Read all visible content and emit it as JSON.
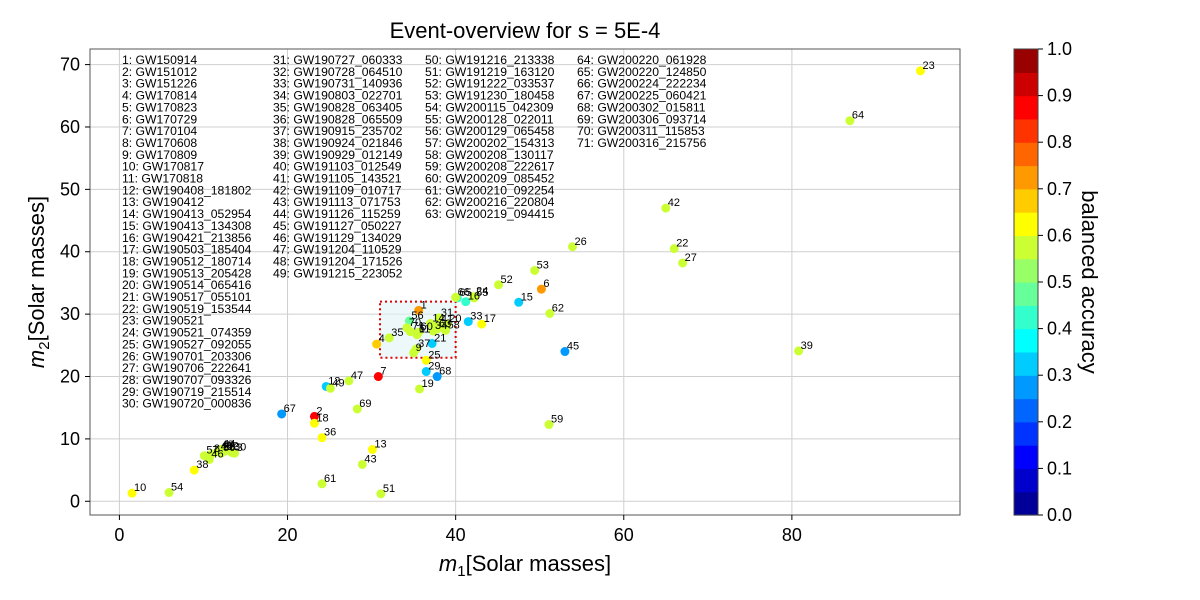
{
  "chart_data": {
    "type": "scatter",
    "title": "Event-overview for s = 5E-4",
    "xlabel_italic": "m",
    "xlabel_sub": "1",
    "xlabel_rest": "[Solar masses]",
    "ylabel_italic": "m",
    "ylabel_sub": "2",
    "ylabel_rest": "[Solar masses]",
    "xlim": [
      -3.5,
      100
    ],
    "ylim": [
      -2.2,
      72.5
    ],
    "xticks": [
      0,
      20,
      40,
      60,
      80
    ],
    "yticks": [
      0,
      10,
      20,
      30,
      40,
      50,
      60,
      70
    ],
    "grid": true,
    "colorbar": {
      "label": "balanced accuracy",
      "range": [
        0,
        1
      ],
      "ticks": [
        "0.0",
        "0.1",
        "0.2",
        "0.3",
        "0.4",
        "0.5",
        "0.6",
        "0.7",
        "0.8",
        "0.9",
        "1.0"
      ],
      "colormap": "jet",
      "levels": 20
    },
    "highlight_box": {
      "x": [
        31,
        40
      ],
      "y": [
        23,
        32
      ],
      "color": "#e00000"
    },
    "legend_columns": [
      [
        "1: GW150914",
        "2: GW151012",
        "3: GW151226",
        "4: GW170814",
        "5: GW170823",
        "6: GW170729",
        "7: GW170104",
        "8: GW170608",
        "9: GW170809",
        "10: GW170817",
        "11: GW170818",
        "12: GW190408_181802",
        "13: GW190412",
        "14: GW190413_052954",
        "15: GW190413_134308",
        "16: GW190421_213856",
        "17: GW190503_185404",
        "18: GW190512_180714",
        "19: GW190513_205428",
        "20: GW190514_065416",
        "21: GW190517_055101",
        "22: GW190519_153544",
        "23: GW190521",
        "24: GW190521_074359",
        "25: GW190527_092055",
        "26: GW190701_203306",
        "27: GW190706_222641",
        "28: GW190707_093326",
        "29: GW190719_215514",
        "30: GW190720_000836"
      ],
      [
        "31: GW190727_060333",
        "32: GW190728_064510",
        "33: GW190731_140936",
        "34: GW190803_022701",
        "35: GW190828_063405",
        "36: GW190828_065509",
        "37: GW190915_235702",
        "38: GW190924_021846",
        "39: GW190929_012149",
        "40: GW191103_012549",
        "41: GW191105_143521",
        "42: GW191109_010717",
        "43: GW191113_071753",
        "44: GW191126_115259",
        "45: GW191127_050227",
        "46: GW191129_134029",
        "47: GW191204_110529",
        "48: GW191204_171526",
        "49: GW191215_223052"
      ],
      [
        "50: GW191216_213338",
        "51: GW191219_163120",
        "52: GW191222_033537",
        "53: GW191230_180458",
        "54: GW200115_042309",
        "55: GW200128_022011",
        "56: GW200129_065458",
        "57: GW200202_154313",
        "58: GW200208_130117",
        "59: GW200208_222617",
        "60: GW200209_085452",
        "61: GW200210_092254",
        "62: GW200216_220804",
        "63: GW200219_094415"
      ],
      [
        "64: GW200220_061928",
        "65: GW200220_124850",
        "66: GW200224_222234",
        "67: GW200225_060421",
        "68: GW200302_015811",
        "69: GW200306_093714",
        "70: GW200311_115853",
        "71: GW200316_215756"
      ]
    ],
    "points": [
      {
        "id": 1,
        "x": 35.6,
        "y": 30.6,
        "acc": 0.7
      },
      {
        "id": 2,
        "x": 23.2,
        "y": 13.6,
        "acc": 0.85
      },
      {
        "id": 3,
        "x": 13.7,
        "y": 7.7,
        "acc": 0.58
      },
      {
        "id": 4,
        "x": 30.6,
        "y": 25.2,
        "acc": 0.65
      },
      {
        "id": 5,
        "x": 35.4,
        "y": 26.8,
        "acc": 0.55
      },
      {
        "id": 6,
        "x": 50.2,
        "y": 34.0,
        "acc": 0.72
      },
      {
        "id": 7,
        "x": 30.8,
        "y": 20.0,
        "acc": 0.85
      },
      {
        "id": 8,
        "x": 11.0,
        "y": 7.6,
        "acc": 0.55
      },
      {
        "id": 9,
        "x": 35.0,
        "y": 23.8,
        "acc": 0.58
      },
      {
        "id": 10,
        "x": 1.5,
        "y": 1.3,
        "acc": 0.62
      },
      {
        "id": 11,
        "x": 35.4,
        "y": 26.7,
        "acc": 0.55
      },
      {
        "id": 12,
        "x": 24.6,
        "y": 18.4,
        "acc": 0.3
      },
      {
        "id": 13,
        "x": 30.1,
        "y": 8.3,
        "acc": 0.62
      },
      {
        "id": 14,
        "x": 37.0,
        "y": 28.5,
        "acc": 0.55
      },
      {
        "id": 15,
        "x": 47.5,
        "y": 31.9,
        "acc": 0.32
      },
      {
        "id": 16,
        "x": 41.2,
        "y": 32.0,
        "acc": 0.42
      },
      {
        "id": 17,
        "x": 43.1,
        "y": 28.4,
        "acc": 0.6
      },
      {
        "id": 18,
        "x": 23.2,
        "y": 12.5,
        "acc": 0.6
      },
      {
        "id": 19,
        "x": 35.7,
        "y": 18.0,
        "acc": 0.55
      },
      {
        "id": 20,
        "x": 39.0,
        "y": 28.4,
        "acc": 0.55
      },
      {
        "id": 21,
        "x": 37.2,
        "y": 25.3,
        "acc": 0.3
      },
      {
        "id": 22,
        "x": 66.0,
        "y": 40.5,
        "acc": 0.55
      },
      {
        "id": 23,
        "x": 95.3,
        "y": 69.0,
        "acc": 0.6
      },
      {
        "id": 24,
        "x": 42.2,
        "y": 32.8,
        "acc": 0.55
      },
      {
        "id": 25,
        "x": 36.5,
        "y": 22.6,
        "acc": 0.62
      },
      {
        "id": 26,
        "x": 53.9,
        "y": 40.8,
        "acc": 0.55
      },
      {
        "id": 27,
        "x": 67.0,
        "y": 38.2,
        "acc": 0.55
      },
      {
        "id": 28,
        "x": 12.1,
        "y": 7.9,
        "acc": 0.58
      },
      {
        "id": 29,
        "x": 36.5,
        "y": 20.8,
        "acc": 0.3
      },
      {
        "id": 30,
        "x": 13.4,
        "y": 7.8,
        "acc": 0.58
      },
      {
        "id": 31,
        "x": 38.0,
        "y": 29.4,
        "acc": 0.55
      },
      {
        "id": 32,
        "x": 12.5,
        "y": 8.0,
        "acc": 0.58
      },
      {
        "id": 33,
        "x": 41.5,
        "y": 28.8,
        "acc": 0.3
      },
      {
        "id": 34,
        "x": 37.3,
        "y": 27.3,
        "acc": 0.55
      },
      {
        "id": 35,
        "x": 32.1,
        "y": 26.2,
        "acc": 0.55
      },
      {
        "id": 36,
        "x": 24.1,
        "y": 10.2,
        "acc": 0.6
      },
      {
        "id": 37,
        "x": 35.3,
        "y": 24.4,
        "acc": 0.55
      },
      {
        "id": 38,
        "x": 8.9,
        "y": 5.0,
        "acc": 0.6
      },
      {
        "id": 39,
        "x": 80.8,
        "y": 24.1,
        "acc": 0.55
      },
      {
        "id": 40,
        "x": 11.8,
        "y": 7.9,
        "acc": 0.58
      },
      {
        "id": 41,
        "x": 38.0,
        "y": 28.3,
        "acc": 0.55
      },
      {
        "id": 42,
        "x": 65.0,
        "y": 47.0,
        "acc": 0.55
      },
      {
        "id": 43,
        "x": 28.9,
        "y": 5.9,
        "acc": 0.55
      },
      {
        "id": 44,
        "x": 12.1,
        "y": 8.3,
        "acc": 0.58
      },
      {
        "id": 45,
        "x": 53.0,
        "y": 24.0,
        "acc": 0.25
      },
      {
        "id": 46,
        "x": 10.7,
        "y": 6.7,
        "acc": 0.55
      },
      {
        "id": 47,
        "x": 27.3,
        "y": 19.3,
        "acc": 0.55
      },
      {
        "id": 48,
        "x": 11.9,
        "y": 8.2,
        "acc": 0.58
      },
      {
        "id": 49,
        "x": 25.1,
        "y": 18.1,
        "acc": 0.55
      },
      {
        "id": 50,
        "x": 12.1,
        "y": 7.7,
        "acc": 0.58
      },
      {
        "id": 51,
        "x": 31.1,
        "y": 1.2,
        "acc": 0.55
      },
      {
        "id": 52,
        "x": 45.1,
        "y": 34.7,
        "acc": 0.55
      },
      {
        "id": 53,
        "x": 49.4,
        "y": 37.0,
        "acc": 0.55
      },
      {
        "id": 54,
        "x": 5.9,
        "y": 1.4,
        "acc": 0.55
      },
      {
        "id": 55,
        "x": 42.2,
        "y": 32.6,
        "acc": 0.55
      },
      {
        "id": 56,
        "x": 34.5,
        "y": 28.9,
        "acc": 0.45
      },
      {
        "id": 57,
        "x": 10.1,
        "y": 7.3,
        "acc": 0.55
      },
      {
        "id": 58,
        "x": 38.8,
        "y": 27.4,
        "acc": 0.55
      },
      {
        "id": 59,
        "x": 51.1,
        "y": 12.3,
        "acc": 0.55
      },
      {
        "id": 60,
        "x": 35.6,
        "y": 27.1,
        "acc": 0.55
      },
      {
        "id": 61,
        "x": 24.1,
        "y": 2.8,
        "acc": 0.55
      },
      {
        "id": 62,
        "x": 51.2,
        "y": 30.1,
        "acc": 0.55
      },
      {
        "id": 63,
        "x": 37.8,
        "y": 27.6,
        "acc": 0.55
      },
      {
        "id": 64,
        "x": 86.9,
        "y": 61.0,
        "acc": 0.55
      },
      {
        "id": 65,
        "x": 40.2,
        "y": 32.6,
        "acc": 0.42
      },
      {
        "id": 66,
        "x": 40.0,
        "y": 32.7,
        "acc": 0.55
      },
      {
        "id": 67,
        "x": 19.3,
        "y": 14.0,
        "acc": 0.28
      },
      {
        "id": 68,
        "x": 37.8,
        "y": 20.0,
        "acc": 0.25
      },
      {
        "id": 69,
        "x": 28.3,
        "y": 14.8,
        "acc": 0.55
      },
      {
        "id": 70,
        "x": 34.2,
        "y": 27.8,
        "acc": 0.55
      },
      {
        "id": 71,
        "x": 34.6,
        "y": 27.2,
        "acc": 0.55
      }
    ]
  }
}
